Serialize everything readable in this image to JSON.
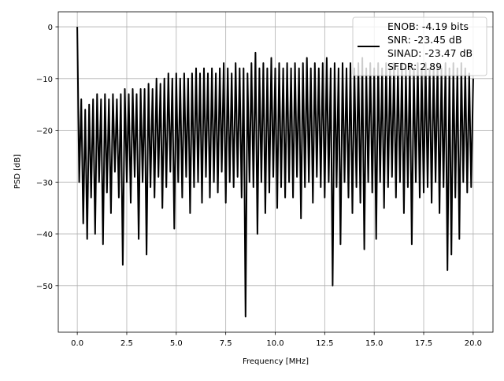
{
  "chart_data": {
    "type": "line",
    "title": "",
    "xlabel": "Frequency [MHz]",
    "ylabel": "PSD [dB]",
    "xlim": [
      -0.96,
      21.0
    ],
    "ylim": [
      -59.0,
      2.9
    ],
    "xticks": [
      0.0,
      2.5,
      5.0,
      7.5,
      10.0,
      12.5,
      15.0,
      17.5,
      20.0
    ],
    "xtick_labels": [
      "0.0",
      "2.5",
      "5.0",
      "7.5",
      "10.0",
      "12.5",
      "15.0",
      "17.5",
      "20.0"
    ],
    "yticks": [
      0,
      -10,
      -20,
      -30,
      -40,
      -50
    ],
    "ytick_labels": [
      "0",
      "−10",
      "−20",
      "−30",
      "−40",
      "−50"
    ],
    "grid": true,
    "legend_position": "top-right",
    "legend": [
      "ENOB: -4.19 bits",
      "SNR: -23.45 dB",
      "SINAD: -23.47 dB",
      "SFDR: 2.89"
    ],
    "series": [
      {
        "color": "#000000",
        "x_range": [
          0,
          20
        ],
        "y": [
          0,
          -30,
          -14,
          -38,
          -16,
          -41,
          -15,
          -33,
          -14,
          -40,
          -13,
          -30,
          -14,
          -42,
          -13,
          -32,
          -14,
          -36,
          -13,
          -28,
          -14,
          -33,
          -13,
          -46,
          -12,
          -30,
          -13,
          -34,
          -12,
          -29,
          -13,
          -41,
          -12,
          -30,
          -12,
          -44,
          -11,
          -31,
          -12,
          -33,
          -10,
          -29,
          -11,
          -35,
          -10,
          -31,
          -9,
          -28,
          -10,
          -39,
          -9,
          -30,
          -10,
          -33,
          -9,
          -29,
          -10,
          -36,
          -9,
          -31,
          -8,
          -30,
          -9,
          -34,
          -8,
          -29,
          -9,
          -33,
          -8,
          -30,
          -9,
          -32,
          -8,
          -28,
          -7,
          -34,
          -8,
          -30,
          -9,
          -31,
          -7,
          -29,
          -8,
          -33,
          -8,
          -56,
          -9,
          -30,
          -7,
          -31,
          -5,
          -40,
          -8,
          -30,
          -7,
          -36,
          -8,
          -32,
          -6,
          -29,
          -8,
          -35,
          -7,
          -31,
          -8,
          -33,
          -7,
          -30,
          -8,
          -33,
          -7,
          -29,
          -8,
          -37,
          -7,
          -31,
          -6,
          -30,
          -8,
          -34,
          -7,
          -29,
          -8,
          -31,
          -7,
          -33,
          -6,
          -30,
          -8,
          -50,
          -7,
          -31,
          -8,
          -42,
          -7,
          -30,
          -8,
          -33,
          -7,
          -36,
          -8,
          -31,
          -7,
          -34,
          -6,
          -43,
          -8,
          -30,
          -7,
          -32,
          -8,
          -41,
          -7,
          -30,
          -8,
          -35,
          -7,
          -31,
          -8,
          -29,
          -7,
          -33,
          -8,
          -30,
          -7,
          -36,
          -8,
          -31,
          -7,
          -42,
          -8,
          -30,
          -7,
          -33,
          -8,
          -32,
          -7,
          -31,
          -8,
          -34,
          -8,
          -30,
          -7,
          -36,
          -8,
          -31,
          -7,
          -47,
          -8,
          -44,
          -7,
          -33,
          -8,
          -41,
          -7,
          -30,
          -8,
          -32,
          -9,
          -31,
          -10
        ]
      }
    ]
  }
}
